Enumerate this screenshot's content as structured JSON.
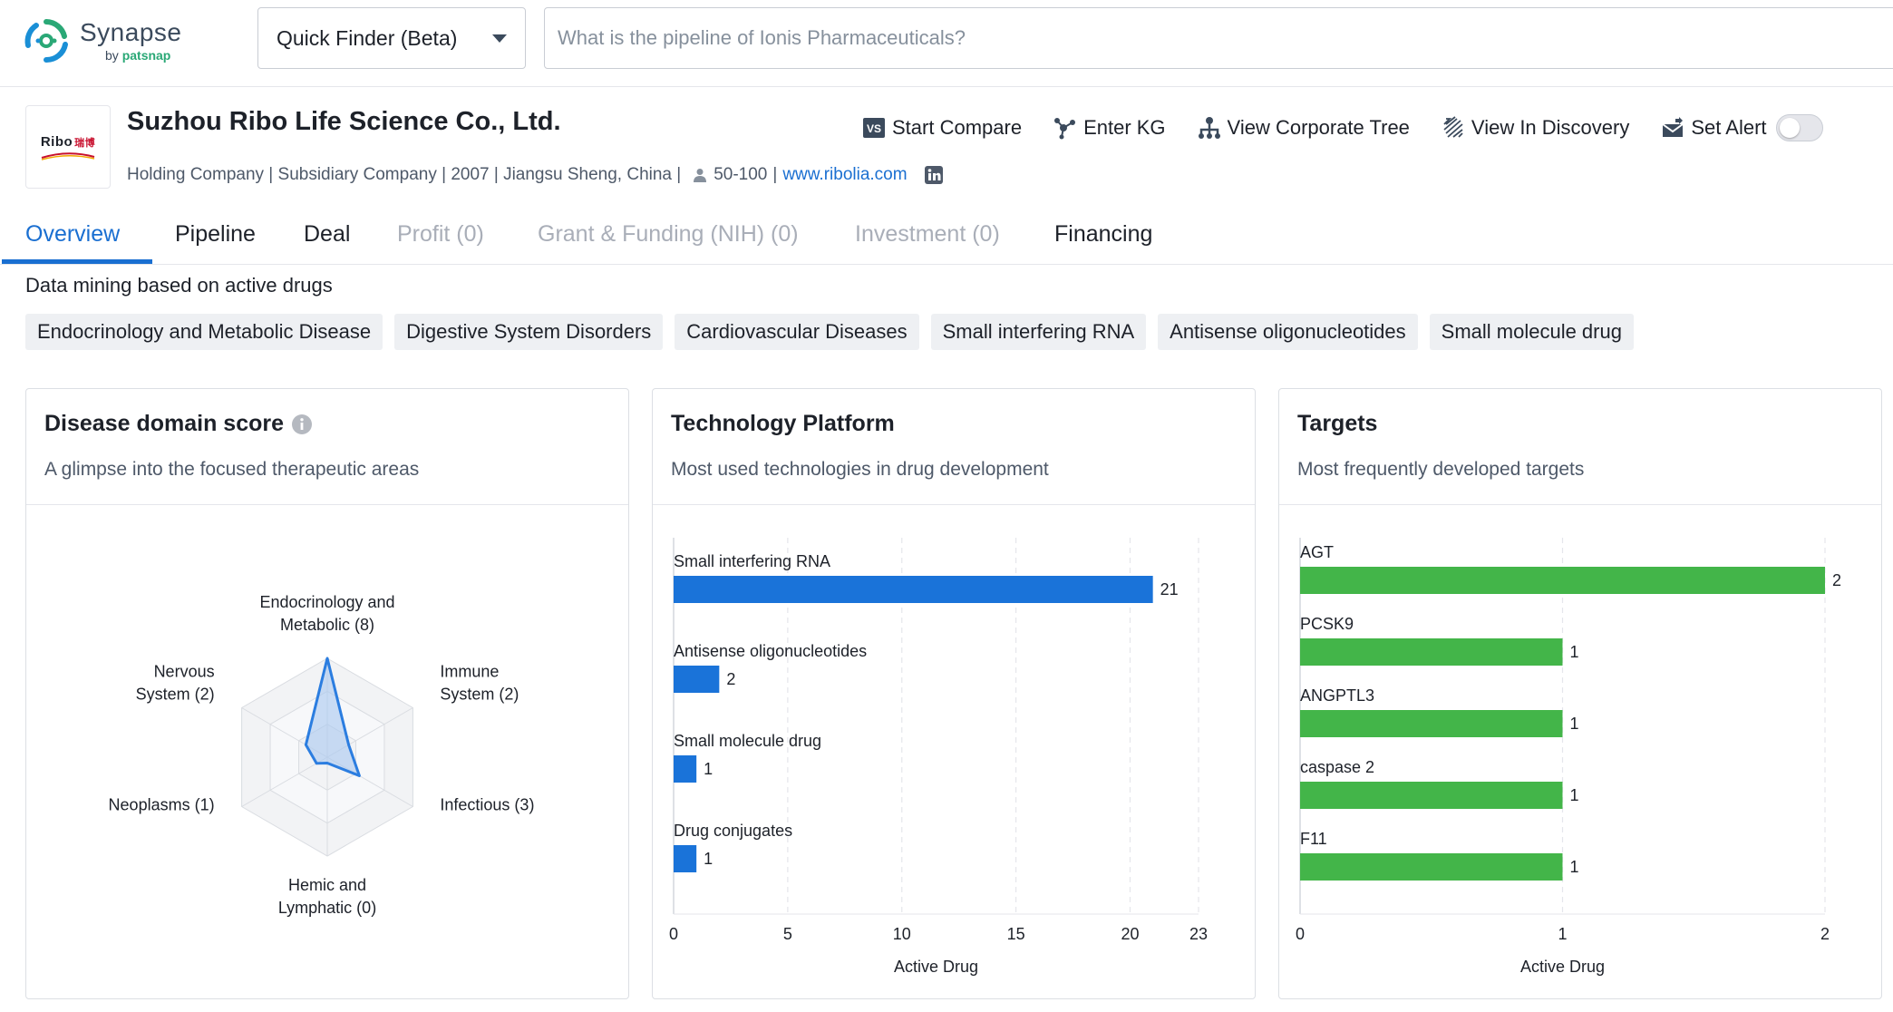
{
  "brand": {
    "name": "Synapse",
    "by": "by",
    "by_brand": "patsnap"
  },
  "finder": {
    "label": "Quick Finder (Beta)"
  },
  "search": {
    "placeholder": "What is the pipeline of Ionis Pharmaceuticals?"
  },
  "company": {
    "logo_text": "Ribo",
    "logo_cn": "瑞博",
    "name": "Suzhou Ribo Life Science Co., Ltd.",
    "meta": "Holding Company | Subsidiary Company | 2007 | Jiangsu Sheng, China |",
    "employees": "50-100",
    "separator": "|",
    "website": "www.ribolia.com"
  },
  "actions": {
    "compare": "Start Compare",
    "enter_kg": "Enter KG",
    "corporate_tree": "View Corporate Tree",
    "discovery": "View In Discovery",
    "alert": "Set Alert",
    "alert_enabled": false
  },
  "tabs": [
    {
      "label": "Overview",
      "state": "active"
    },
    {
      "label": "Pipeline",
      "state": "normal"
    },
    {
      "label": "Deal",
      "state": "normal"
    },
    {
      "label": "Profit (0)",
      "state": "disabled"
    },
    {
      "label": "Grant & Funding (NIH) (0)",
      "state": "disabled"
    },
    {
      "label": "Investment (0)",
      "state": "disabled"
    },
    {
      "label": "Financing",
      "state": "normal"
    }
  ],
  "data_mining": {
    "title": "Data mining based on active drugs",
    "chips": [
      "Endocrinology and Metabolic Disease",
      "Digestive System Disorders",
      "Cardiovascular Diseases",
      "Small interfering RNA",
      "Antisense oligonucleotides",
      "Small molecule drug"
    ]
  },
  "cards": {
    "disease": {
      "title": "Disease domain score",
      "subtitle": "A glimpse into the focused therapeutic areas"
    },
    "technology": {
      "title": "Technology Platform",
      "subtitle": "Most used technologies in drug development"
    },
    "targets": {
      "title": "Targets",
      "subtitle": "Most frequently developed targets"
    }
  },
  "colors": {
    "accent": "#1a6fd1",
    "tech_bar": "#1a73d9",
    "target_bar": "#43b549",
    "radar_stroke": "#2b7de0",
    "radar_fill": "#a8c8f0"
  },
  "chart_data": [
    {
      "type": "radar",
      "categories": [
        [
          "Endocrinology and",
          "Metabolic (8)"
        ],
        [
          "Immune",
          "System (2)"
        ],
        [
          "Infectious (3)"
        ],
        [
          "Hemic and",
          "Lymphatic (0)"
        ],
        [
          "Neoplasms (1)"
        ],
        [
          "Nervous",
          "System (2)"
        ]
      ],
      "values": [
        8,
        2,
        3,
        0,
        1,
        2
      ],
      "max": 8
    },
    {
      "type": "bar",
      "orientation": "horizontal",
      "categories": [
        "Small interfering RNA",
        "Antisense oligonucleotides",
        "Small molecule drug",
        "Drug conjugates"
      ],
      "values": [
        21,
        2,
        1,
        1
      ],
      "xlabel": "Active Drug",
      "xlim": [
        0,
        23
      ],
      "xticks": [
        0,
        5,
        10,
        15,
        20,
        23
      ],
      "grid": true
    },
    {
      "type": "bar",
      "orientation": "horizontal",
      "categories": [
        "AGT",
        "PCSK9",
        "ANGPTL3",
        "caspase 2",
        "F11"
      ],
      "values": [
        2,
        1,
        1,
        1,
        1
      ],
      "xlabel": "Active Drug",
      "xlim": [
        0,
        2
      ],
      "xticks": [
        0,
        1,
        2
      ],
      "grid": true
    }
  ]
}
